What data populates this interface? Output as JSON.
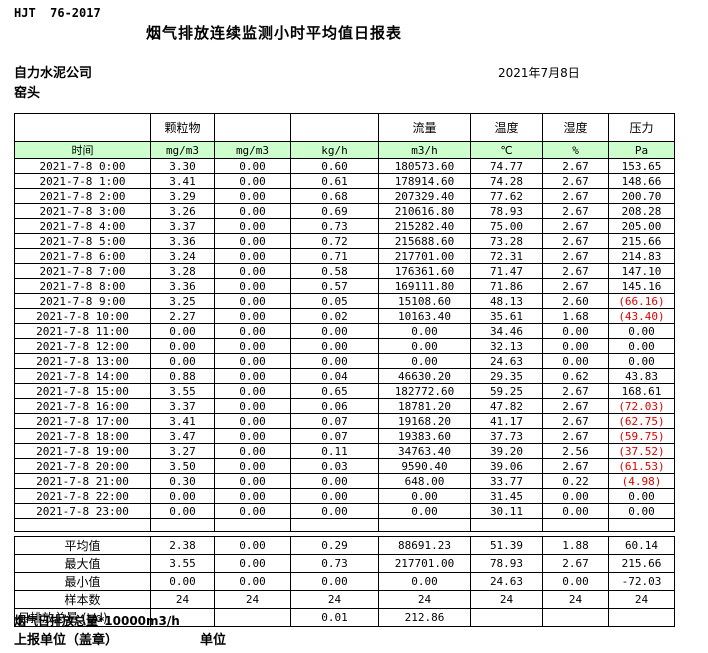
{
  "header": {
    "standard": "HJT  76-2017",
    "title": "烟气排放连续监测小时平均值日报表",
    "company": "自力水泥公司",
    "location": "窑头",
    "date": "2021年7月8日"
  },
  "table": {
    "group_headers": [
      "",
      "颗粒物",
      "",
      "",
      "流量",
      "温度",
      "湿度",
      "压力"
    ],
    "unit_headers": [
      "时间",
      "mg/m3",
      "mg/m3",
      "kg/h",
      "m3/h",
      "℃",
      "%",
      "Pa"
    ],
    "header_fill": "#ccffcc",
    "negative_color": "#dd0000",
    "rows": [
      [
        "2021-7-8 0:00",
        "3.30",
        "0.00",
        "0.60",
        "180573.60",
        "74.77",
        "2.67",
        "153.65"
      ],
      [
        "2021-7-8 1:00",
        "3.41",
        "0.00",
        "0.61",
        "178914.60",
        "74.28",
        "2.67",
        "148.66"
      ],
      [
        "2021-7-8 2:00",
        "3.29",
        "0.00",
        "0.68",
        "207329.40",
        "77.62",
        "2.67",
        "200.70"
      ],
      [
        "2021-7-8 3:00",
        "3.26",
        "0.00",
        "0.69",
        "210616.80",
        "78.93",
        "2.67",
        "208.28"
      ],
      [
        "2021-7-8 4:00",
        "3.37",
        "0.00",
        "0.73",
        "215282.40",
        "75.00",
        "2.67",
        "205.00"
      ],
      [
        "2021-7-8 5:00",
        "3.36",
        "0.00",
        "0.72",
        "215688.60",
        "73.28",
        "2.67",
        "215.66"
      ],
      [
        "2021-7-8 6:00",
        "3.24",
        "0.00",
        "0.71",
        "217701.00",
        "72.31",
        "2.67",
        "214.83"
      ],
      [
        "2021-7-8 7:00",
        "3.28",
        "0.00",
        "0.58",
        "176361.60",
        "71.47",
        "2.67",
        "147.10"
      ],
      [
        "2021-7-8 8:00",
        "3.36",
        "0.00",
        "0.57",
        "169111.80",
        "71.86",
        "2.67",
        "145.16"
      ],
      [
        "2021-7-8 9:00",
        "3.25",
        "0.00",
        "0.05",
        "15108.60",
        "48.13",
        "2.60",
        "(66.16)"
      ],
      [
        "2021-7-8 10:00",
        "2.27",
        "0.00",
        "0.02",
        "10163.40",
        "35.61",
        "1.68",
        "(43.40)"
      ],
      [
        "2021-7-8 11:00",
        "0.00",
        "0.00",
        "0.00",
        "0.00",
        "34.46",
        "0.00",
        "0.00"
      ],
      [
        "2021-7-8 12:00",
        "0.00",
        "0.00",
        "0.00",
        "0.00",
        "32.13",
        "0.00",
        "0.00"
      ],
      [
        "2021-7-8 13:00",
        "0.00",
        "0.00",
        "0.00",
        "0.00",
        "24.63",
        "0.00",
        "0.00"
      ],
      [
        "2021-7-8 14:00",
        "0.88",
        "0.00",
        "0.04",
        "46630.20",
        "29.35",
        "0.62",
        "43.83"
      ],
      [
        "2021-7-8 15:00",
        "3.55",
        "0.00",
        "0.65",
        "182772.60",
        "59.25",
        "2.67",
        "168.61"
      ],
      [
        "2021-7-8 16:00",
        "3.37",
        "0.00",
        "0.06",
        "18781.20",
        "47.82",
        "2.67",
        "(72.03)"
      ],
      [
        "2021-7-8 17:00",
        "3.41",
        "0.00",
        "0.07",
        "19168.20",
        "41.17",
        "2.67",
        "(62.75)"
      ],
      [
        "2021-7-8 18:00",
        "3.47",
        "0.00",
        "0.07",
        "19383.60",
        "37.73",
        "2.67",
        "(59.75)"
      ],
      [
        "2021-7-8 19:00",
        "3.27",
        "0.00",
        "0.11",
        "34763.40",
        "39.20",
        "2.56",
        "(37.52)"
      ],
      [
        "2021-7-8 20:00",
        "3.50",
        "0.00",
        "0.03",
        "9590.40",
        "39.06",
        "2.67",
        "(61.53)"
      ],
      [
        "2021-7-8 21:00",
        "0.30",
        "0.00",
        "0.00",
        "648.00",
        "33.77",
        "0.22",
        "(4.98)"
      ],
      [
        "2021-7-8 22:00",
        "0.00",
        "0.00",
        "0.00",
        "0.00",
        "31.45",
        "0.00",
        "0.00"
      ],
      [
        "2021-7-8 23:00",
        "0.00",
        "0.00",
        "0.00",
        "0.00",
        "30.11",
        "0.00",
        "0.00"
      ]
    ],
    "summary_rows": [
      [
        "平均值",
        "2.38",
        "0.00",
        "0.29",
        "88691.23",
        "51.39",
        "1.88",
        "60.14"
      ],
      [
        "最大值",
        "3.55",
        "0.00",
        "0.73",
        "217701.00",
        "78.93",
        "2.67",
        "215.66"
      ],
      [
        "最小值",
        "0.00",
        "0.00",
        "0.00",
        "0.00",
        "24.63",
        "0.00",
        "-72.03"
      ],
      [
        "样本数",
        "24",
        "24",
        "24",
        "24",
        "24",
        "24",
        "24"
      ],
      [
        "日排放总量 (t/d)",
        "",
        "",
        "0.01",
        "212.86",
        "",
        "",
        ""
      ]
    ]
  },
  "footer": {
    "note": "烟气日排放总量*10000m3/h",
    "report_unit": "上报单位（盖章）",
    "unit": "单位"
  }
}
